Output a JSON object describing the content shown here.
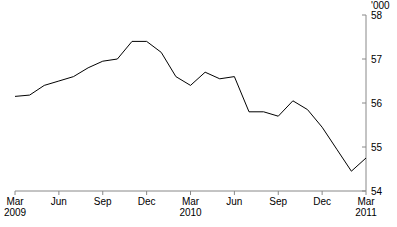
{
  "chart_data": {
    "type": "line",
    "y_label": "'000",
    "categories": [
      "Mar 2009",
      null,
      null,
      "Jun",
      null,
      null,
      "Sep",
      null,
      null,
      "Dec",
      null,
      null,
      "Mar 2010",
      null,
      null,
      "Jun",
      null,
      null,
      "Sep",
      null,
      null,
      "Dec",
      null,
      null,
      "Mar 2011"
    ],
    "values": [
      56.15,
      56.18,
      56.4,
      56.5,
      56.6,
      56.8,
      56.95,
      57.0,
      57.4,
      57.4,
      57.15,
      56.6,
      56.4,
      56.7,
      56.55,
      56.6,
      55.8,
      55.8,
      55.7,
      56.05,
      55.85,
      55.45,
      54.95,
      54.45,
      54.75
    ],
    "color": "#000000",
    "ylim": [
      54,
      58
    ],
    "yticks": [
      54,
      55,
      56,
      57,
      58
    ],
    "grid": false
  }
}
